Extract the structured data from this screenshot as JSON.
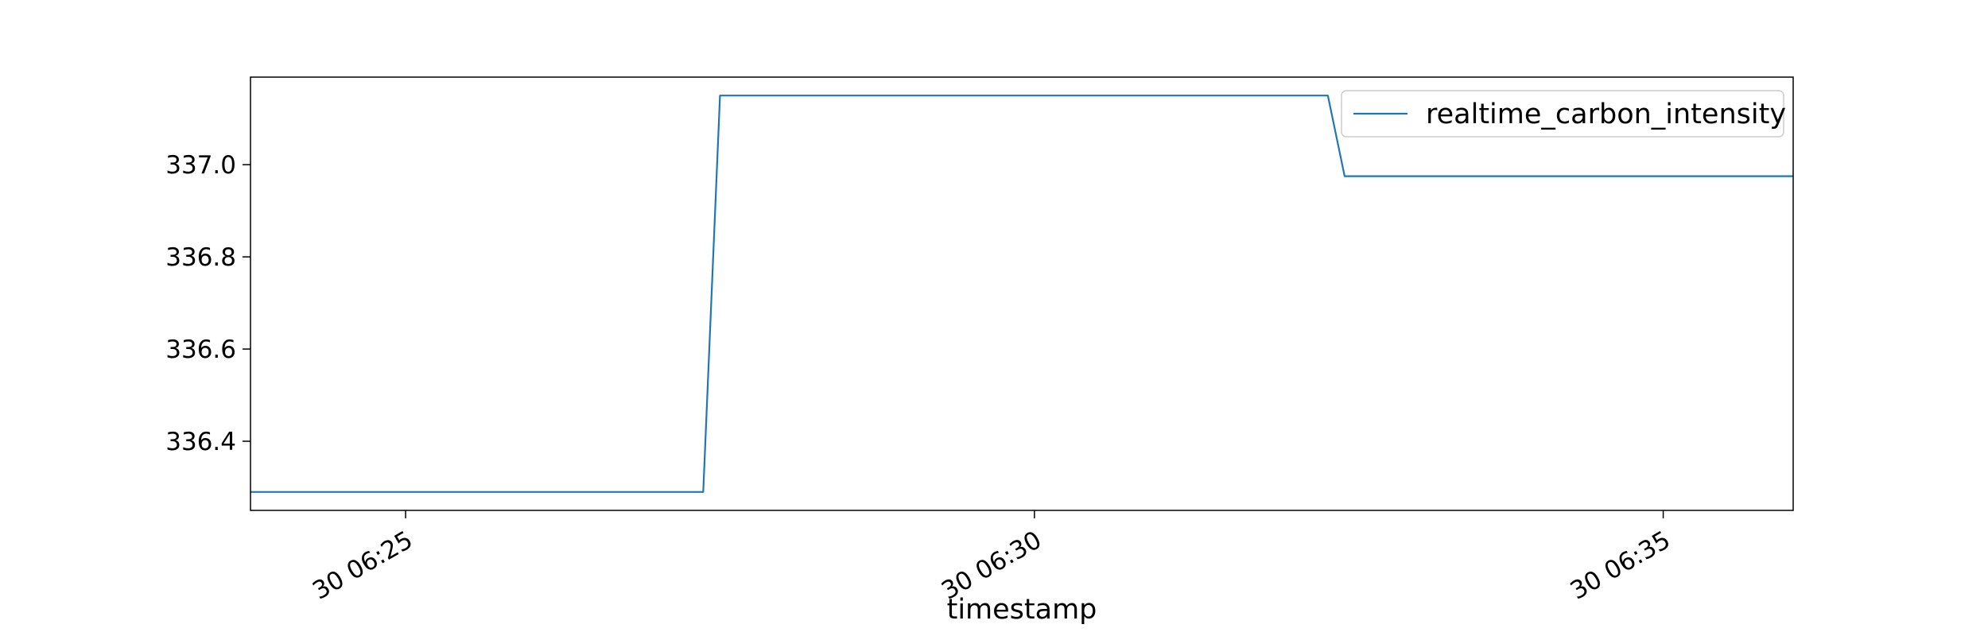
{
  "chart_data": {
    "type": "line",
    "title": "",
    "xlabel": "timestamp",
    "ylabel": "",
    "x_type": "time",
    "xlim": [
      "06:23:46",
      "06:36:02"
    ],
    "ylim": [
      336.25,
      337.19
    ],
    "x_ticks": [
      {
        "time": "06:25:00",
        "label": "30 06:25"
      },
      {
        "time": "06:30:00",
        "label": "30 06:30"
      },
      {
        "time": "06:35:00",
        "label": "30 06:35"
      }
    ],
    "y_ticks": [
      {
        "value": 336.4,
        "label": "336.4"
      },
      {
        "value": 336.6,
        "label": "336.6"
      },
      {
        "value": 336.8,
        "label": "336.8"
      },
      {
        "value": 337.0,
        "label": "337.0"
      }
    ],
    "grid": false,
    "legend": {
      "position": "top-right"
    },
    "series": [
      {
        "name": "realtime_carbon_intensity",
        "color": "#1f77b4",
        "points": [
          {
            "x": "06:23:46",
            "y": 336.29
          },
          {
            "x": "06:27:22",
            "y": 336.29
          },
          {
            "x": "06:27:30",
            "y": 337.15
          },
          {
            "x": "06:32:20",
            "y": 337.15
          },
          {
            "x": "06:32:28",
            "y": 336.975
          },
          {
            "x": "06:36:02",
            "y": 336.975
          }
        ]
      }
    ]
  }
}
